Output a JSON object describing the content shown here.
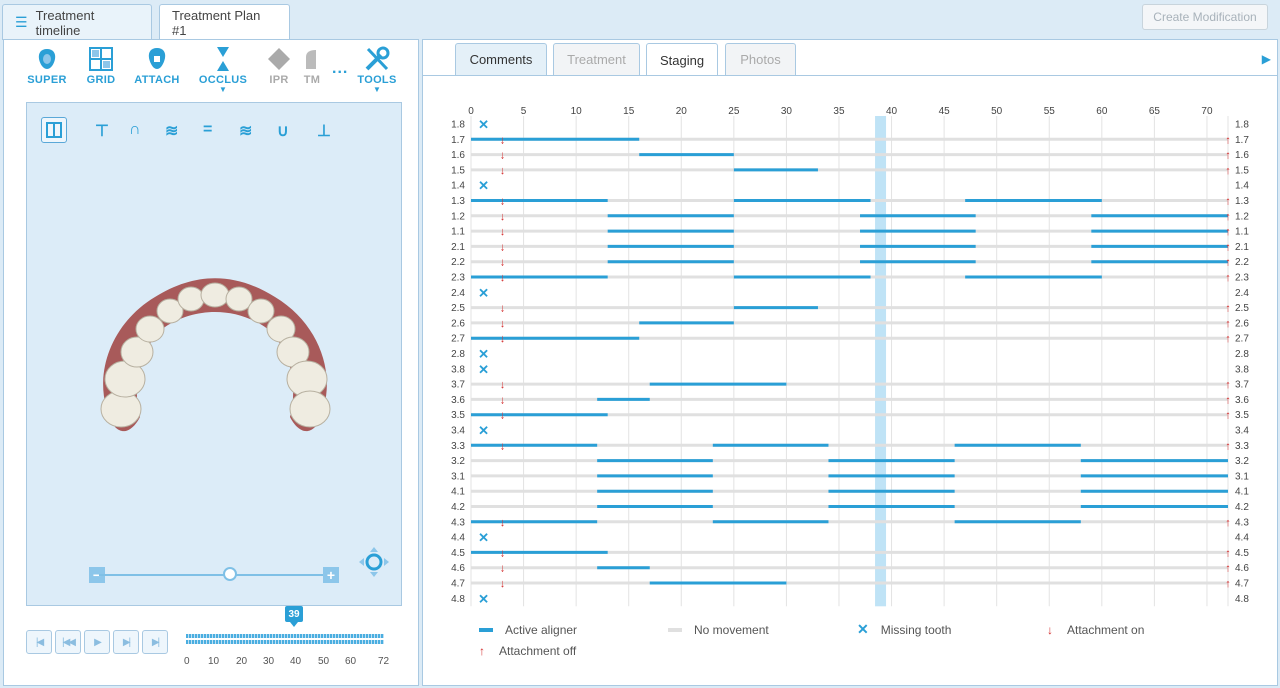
{
  "doc_tabs": {
    "timeline": "Treatment timeline",
    "plan": "Treatment Plan #1"
  },
  "create_modification": "Create Modification",
  "tools": [
    {
      "label": "SUPER",
      "icon": "tooth-icon"
    },
    {
      "label": "GRID",
      "icon": "grid-icon"
    },
    {
      "label": "ATTACH",
      "icon": "attachment-icon"
    },
    {
      "label": "OCCLUS",
      "icon": "occlusion-icon"
    },
    {
      "label": "IPR",
      "icon": "ipr-icon"
    },
    {
      "label": "TM",
      "icon": "tm-icon"
    },
    {
      "label": "TOOLS",
      "icon": "tools-icon"
    }
  ],
  "more_dots": "...",
  "panel_tabs": {
    "comments": "Comments",
    "treatment": "Treatment",
    "staging": "Staging",
    "photos": "Photos"
  },
  "playback": {
    "current_stage": "39",
    "ticks": [
      "0",
      "10",
      "20",
      "30",
      "40",
      "50",
      "60",
      "72"
    ],
    "zoom_minus": "−",
    "zoom_plus": "+"
  },
  "legend": {
    "active": "Active aligner",
    "no_movement": "No movement",
    "missing": "Missing tooth",
    "attach_on": "Attachment on",
    "attach_off": "Attachment off"
  },
  "colors": {
    "active": "#2a9fd6",
    "no_movement": "#e0e0e0",
    "missing": "#2a9fd6",
    "attach": "#d32f2f",
    "current_stage": "#bfe3f6"
  },
  "staging": {
    "x_ticks": [
      0,
      5,
      10,
      15,
      20,
      25,
      30,
      35,
      40,
      45,
      50,
      55,
      60,
      65,
      70
    ],
    "max_stage": 72,
    "current_stage": 39,
    "teeth": [
      {
        "id": "1.8",
        "missing": true
      },
      {
        "id": "1.7",
        "attach": true,
        "active": [
          [
            0,
            16
          ]
        ]
      },
      {
        "id": "1.6",
        "attach": true,
        "active": [
          [
            16,
            25
          ]
        ]
      },
      {
        "id": "1.5",
        "attach": true,
        "active": [
          [
            25,
            33
          ]
        ]
      },
      {
        "id": "1.4",
        "missing": true
      },
      {
        "id": "1.3",
        "attach": true,
        "active": [
          [
            0,
            13
          ],
          [
            25,
            38
          ],
          [
            47,
            60
          ]
        ]
      },
      {
        "id": "1.2",
        "attach": true,
        "active": [
          [
            13,
            25
          ],
          [
            37,
            48
          ],
          [
            59,
            72
          ]
        ]
      },
      {
        "id": "1.1",
        "attach": true,
        "active": [
          [
            13,
            25
          ],
          [
            37,
            48
          ],
          [
            59,
            72
          ]
        ]
      },
      {
        "id": "2.1",
        "attach": true,
        "active": [
          [
            13,
            25
          ],
          [
            37,
            48
          ],
          [
            59,
            72
          ]
        ]
      },
      {
        "id": "2.2",
        "attach": true,
        "active": [
          [
            13,
            25
          ],
          [
            37,
            48
          ],
          [
            59,
            72
          ]
        ]
      },
      {
        "id": "2.3",
        "attach": true,
        "active": [
          [
            0,
            13
          ],
          [
            25,
            38
          ],
          [
            47,
            60
          ]
        ]
      },
      {
        "id": "2.4",
        "missing": true
      },
      {
        "id": "2.5",
        "attach": true,
        "active": [
          [
            25,
            33
          ]
        ]
      },
      {
        "id": "2.6",
        "attach": true,
        "active": [
          [
            16,
            25
          ]
        ]
      },
      {
        "id": "2.7",
        "attach": true,
        "active": [
          [
            0,
            16
          ]
        ]
      },
      {
        "id": "2.8",
        "missing": true
      },
      {
        "id": "3.8",
        "missing": true
      },
      {
        "id": "3.7",
        "attach": true,
        "active": [
          [
            17,
            30
          ]
        ]
      },
      {
        "id": "3.6",
        "attach": true,
        "active": [
          [
            12,
            17
          ]
        ]
      },
      {
        "id": "3.5",
        "attach": true,
        "active": [
          [
            0,
            13
          ]
        ]
      },
      {
        "id": "3.4",
        "missing": true
      },
      {
        "id": "3.3",
        "attach": true,
        "active": [
          [
            0,
            12
          ],
          [
            23,
            34
          ],
          [
            46,
            58
          ]
        ]
      },
      {
        "id": "3.2",
        "active": [
          [
            12,
            23
          ],
          [
            34,
            46
          ],
          [
            58,
            72
          ]
        ]
      },
      {
        "id": "3.1",
        "active": [
          [
            12,
            23
          ],
          [
            34,
            46
          ],
          [
            58,
            72
          ]
        ]
      },
      {
        "id": "4.1",
        "active": [
          [
            12,
            23
          ],
          [
            34,
            46
          ],
          [
            58,
            72
          ]
        ]
      },
      {
        "id": "4.2",
        "active": [
          [
            12,
            23
          ],
          [
            34,
            46
          ],
          [
            58,
            72
          ]
        ]
      },
      {
        "id": "4.3",
        "attach": true,
        "active": [
          [
            0,
            12
          ],
          [
            23,
            34
          ],
          [
            46,
            58
          ]
        ]
      },
      {
        "id": "4.4",
        "missing": true
      },
      {
        "id": "4.5",
        "attach": true,
        "active": [
          [
            0,
            13
          ]
        ]
      },
      {
        "id": "4.6",
        "attach": true,
        "active": [
          [
            12,
            17
          ]
        ]
      },
      {
        "id": "4.7",
        "attach": true,
        "active": [
          [
            17,
            30
          ]
        ]
      },
      {
        "id": "4.8",
        "missing": true
      }
    ]
  }
}
